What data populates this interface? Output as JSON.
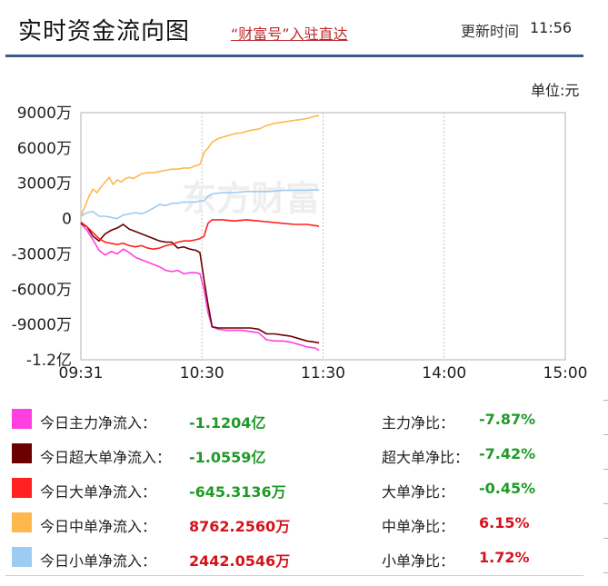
{
  "header": {
    "title": "实时资金流向图",
    "promo_link": "“财富号”入驻直达",
    "update_label": "更新时间",
    "update_time": "11:56"
  },
  "unit_label": "单位:元",
  "colors": {
    "main": "#ff3fe0",
    "super": "#6b0000",
    "large": "#ff2020",
    "medium": "#ffb84d",
    "small": "#9ecbf2",
    "divider": "#3b5a8c",
    "positive": "#d3131b",
    "negative": "#1f9a27"
  },
  "chart_data": {
    "type": "line",
    "watermark": "东方财富",
    "x_ticks": [
      "09:31",
      "10:30",
      "11:30",
      "14:00",
      "15:00"
    ],
    "y_ticks": [
      "9000万",
      "6000万",
      "3000万",
      "0",
      "-3000万",
      "-6000万",
      "-9000万",
      "-1.2亿"
    ],
    "ylim_wan": [
      -12000,
      9000
    ],
    "x_unit": "minutes_since_open_931",
    "series": [
      {
        "name": "今日主力净流入",
        "color": "#ff3fe0",
        "points": [
          [
            0,
            -400
          ],
          [
            3,
            -1000
          ],
          [
            6,
            -1800
          ],
          [
            9,
            -2700
          ],
          [
            12,
            -3100
          ],
          [
            15,
            -2800
          ],
          [
            18,
            -3000
          ],
          [
            21,
            -2600
          ],
          [
            24,
            -2900
          ],
          [
            27,
            -3300
          ],
          [
            30,
            -3500
          ],
          [
            33,
            -3700
          ],
          [
            36,
            -3900
          ],
          [
            39,
            -4100
          ],
          [
            42,
            -4400
          ],
          [
            45,
            -4500
          ],
          [
            48,
            -4400
          ],
          [
            51,
            -4700
          ],
          [
            54,
            -4600
          ],
          [
            57,
            -4600
          ],
          [
            59,
            -4700
          ],
          [
            61,
            -6000
          ],
          [
            63,
            -8000
          ],
          [
            65,
            -9200
          ],
          [
            68,
            -9400
          ],
          [
            72,
            -9500
          ],
          [
            76,
            -9500
          ],
          [
            80,
            -9500
          ],
          [
            84,
            -9600
          ],
          [
            88,
            -9700
          ],
          [
            92,
            -10300
          ],
          [
            96,
            -10400
          ],
          [
            100,
            -10400
          ],
          [
            104,
            -10500
          ],
          [
            108,
            -10700
          ],
          [
            112,
            -10900
          ],
          [
            116,
            -11000
          ],
          [
            118,
            -11204
          ]
        ]
      },
      {
        "name": "今日超大单净流入",
        "color": "#6b0000",
        "points": [
          [
            0,
            -400
          ],
          [
            3,
            -700
          ],
          [
            6,
            -1500
          ],
          [
            9,
            -1900
          ],
          [
            12,
            -1300
          ],
          [
            15,
            -1000
          ],
          [
            18,
            -800
          ],
          [
            21,
            -500
          ],
          [
            24,
            -900
          ],
          [
            27,
            -1100
          ],
          [
            30,
            -1300
          ],
          [
            33,
            -1500
          ],
          [
            36,
            -1700
          ],
          [
            39,
            -1900
          ],
          [
            42,
            -2000
          ],
          [
            45,
            -2000
          ],
          [
            48,
            -2500
          ],
          [
            51,
            -2400
          ],
          [
            54,
            -2600
          ],
          [
            57,
            -2700
          ],
          [
            59,
            -2900
          ],
          [
            61,
            -5200
          ],
          [
            63,
            -7300
          ],
          [
            65,
            -9200
          ],
          [
            68,
            -9300
          ],
          [
            72,
            -9300
          ],
          [
            76,
            -9300
          ],
          [
            80,
            -9300
          ],
          [
            84,
            -9300
          ],
          [
            88,
            -9400
          ],
          [
            92,
            -9800
          ],
          [
            96,
            -9800
          ],
          [
            100,
            -9900
          ],
          [
            104,
            -10000
          ],
          [
            108,
            -10200
          ],
          [
            112,
            -10400
          ],
          [
            116,
            -10500
          ],
          [
            118,
            -10559
          ]
        ]
      },
      {
        "name": "今日大单净流入",
        "color": "#ff2020",
        "points": [
          [
            0,
            -300
          ],
          [
            3,
            -700
          ],
          [
            6,
            -1200
          ],
          [
            9,
            -1700
          ],
          [
            12,
            -2000
          ],
          [
            15,
            -2100
          ],
          [
            18,
            -2200
          ],
          [
            21,
            -2100
          ],
          [
            24,
            -2300
          ],
          [
            27,
            -2400
          ],
          [
            30,
            -2300
          ],
          [
            33,
            -2500
          ],
          [
            36,
            -2600
          ],
          [
            39,
            -2500
          ],
          [
            42,
            -2300
          ],
          [
            45,
            -2200
          ],
          [
            48,
            -2000
          ],
          [
            51,
            -1900
          ],
          [
            54,
            -1900
          ],
          [
            57,
            -1800
          ],
          [
            59,
            -1700
          ],
          [
            61,
            -1500
          ],
          [
            63,
            -400
          ],
          [
            65,
            -100
          ],
          [
            70,
            -100
          ],
          [
            76,
            -200
          ],
          [
            82,
            -100
          ],
          [
            88,
            -200
          ],
          [
            94,
            -300
          ],
          [
            100,
            -400
          ],
          [
            106,
            -500
          ],
          [
            112,
            -500
          ],
          [
            118,
            -645
          ]
        ]
      },
      {
        "name": "今日中单净流入",
        "color": "#ffb84d",
        "points": [
          [
            0,
            200
          ],
          [
            2,
            1000
          ],
          [
            4,
            1900
          ],
          [
            6,
            2500
          ],
          [
            8,
            2200
          ],
          [
            10,
            2700
          ],
          [
            12,
            3100
          ],
          [
            14,
            3500
          ],
          [
            16,
            2900
          ],
          [
            18,
            3300
          ],
          [
            20,
            3100
          ],
          [
            22,
            3400
          ],
          [
            24,
            3500
          ],
          [
            26,
            3400
          ],
          [
            28,
            3600
          ],
          [
            30,
            3800
          ],
          [
            33,
            3900
          ],
          [
            36,
            3900
          ],
          [
            39,
            4000
          ],
          [
            42,
            4100
          ],
          [
            45,
            4200
          ],
          [
            48,
            4200
          ],
          [
            51,
            4300
          ],
          [
            54,
            4300
          ],
          [
            57,
            4500
          ],
          [
            59,
            4600
          ],
          [
            61,
            5600
          ],
          [
            63,
            6000
          ],
          [
            65,
            6500
          ],
          [
            68,
            6800
          ],
          [
            72,
            7000
          ],
          [
            76,
            7200
          ],
          [
            80,
            7300
          ],
          [
            84,
            7500
          ],
          [
            88,
            7600
          ],
          [
            92,
            7900
          ],
          [
            96,
            8100
          ],
          [
            100,
            8200
          ],
          [
            104,
            8300
          ],
          [
            108,
            8400
          ],
          [
            112,
            8500
          ],
          [
            116,
            8700
          ],
          [
            118,
            8762
          ]
        ]
      },
      {
        "name": "今日小单净流入",
        "color": "#9ecbf2",
        "points": [
          [
            0,
            200
          ],
          [
            3,
            500
          ],
          [
            6,
            600
          ],
          [
            9,
            200
          ],
          [
            12,
            200
          ],
          [
            15,
            100
          ],
          [
            18,
            0
          ],
          [
            21,
            300
          ],
          [
            24,
            400
          ],
          [
            27,
            500
          ],
          [
            30,
            400
          ],
          [
            33,
            600
          ],
          [
            36,
            900
          ],
          [
            39,
            1200
          ],
          [
            42,
            1100
          ],
          [
            45,
            1300
          ],
          [
            48,
            1300
          ],
          [
            51,
            1400
          ],
          [
            54,
            1400
          ],
          [
            57,
            1400
          ],
          [
            59,
            1500
          ],
          [
            61,
            1500
          ],
          [
            63,
            1900
          ],
          [
            65,
            2100
          ],
          [
            70,
            2200
          ],
          [
            76,
            2200
          ],
          [
            82,
            2300
          ],
          [
            88,
            2300
          ],
          [
            94,
            2300
          ],
          [
            100,
            2400
          ],
          [
            106,
            2400
          ],
          [
            112,
            2400
          ],
          [
            118,
            2442
          ]
        ]
      }
    ]
  },
  "legend": {
    "rows": [
      {
        "label": "今日主力净流入：",
        "value": "-1.1204亿",
        "ratio_label": "主力净比：",
        "ratio": "-7.87%",
        "color": "#ff3fe0",
        "tone": "green",
        "ratio_tone": "green",
        "name": "main"
      },
      {
        "label": "今日超大单净流入：",
        "value": "-1.0559亿",
        "ratio_label": "超大单净比：",
        "ratio": "-7.42%",
        "color": "#6b0000",
        "tone": "green",
        "ratio_tone": "green",
        "name": "super-large"
      },
      {
        "label": "今日大单净流入：",
        "value": "-645.3136万",
        "ratio_label": "大单净比：",
        "ratio": "-0.45%",
        "color": "#ff2020",
        "tone": "green",
        "ratio_tone": "green",
        "name": "large"
      },
      {
        "label": "今日中单净流入：",
        "value": "8762.2560万",
        "ratio_label": "中单净比：",
        "ratio": "6.15%",
        "color": "#ffb84d",
        "tone": "red",
        "ratio_tone": "red",
        "name": "medium"
      },
      {
        "label": "今日小单净流入：",
        "value": "2442.0546万",
        "ratio_label": "小单净比：",
        "ratio": "1.72%",
        "color": "#9ecbf2",
        "tone": "red",
        "ratio_tone": "red",
        "name": "small"
      }
    ]
  }
}
